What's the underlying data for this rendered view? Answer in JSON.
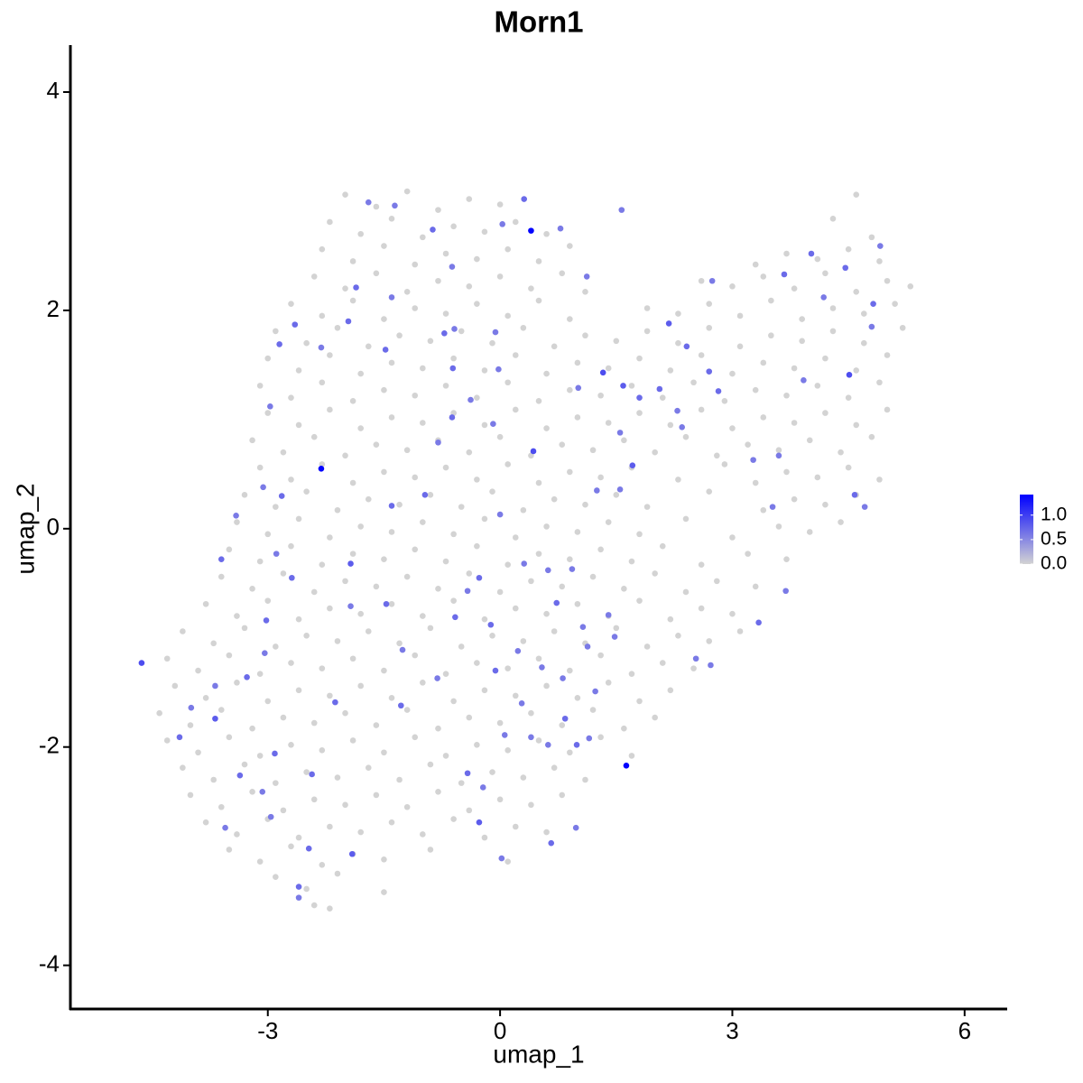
{
  "chart_data": {
    "type": "scatter",
    "title": "Morn1",
    "x_label": "umap_1",
    "y_label": "umap_2",
    "xlim": [
      -5.55,
      6.55
    ],
    "ylim": [
      -4.4,
      4.43
    ],
    "xticks": [
      -3,
      0,
      3,
      6
    ],
    "yticks": [
      -4,
      -2,
      0,
      2,
      4
    ],
    "colorbar": {
      "lim": [
        0,
        1.42
      ],
      "low_color": "#d3d3d3",
      "high_color": "#0000ff",
      "ticks": [
        {
          "value": 0,
          "label": "0.0"
        },
        {
          "value": 0.5,
          "label": "0.5"
        },
        {
          "value": 1,
          "label": "1.0"
        }
      ]
    },
    "x": [
      -2.0,
      -1.6,
      -1.2,
      -0.8,
      -0.4,
      0,
      4.6,
      -2.2,
      -1.8,
      -1.4,
      -1.0,
      -0.6,
      -0.2,
      0.2,
      0.6,
      4.3,
      4.8,
      -2.3,
      -1.9,
      -1.5,
      -1.1,
      -0.7,
      -0.3,
      0.1,
      0.5,
      0.9,
      3.3,
      3.7,
      4.1,
      4.5,
      4.9,
      -2.4,
      -2.0,
      -1.6,
      -1.2,
      -0.8,
      -0.4,
      0,
      0.4,
      0.8,
      1.1,
      2.6,
      3.0,
      3.4,
      3.8,
      4.2,
      4.6,
      5.0,
      5.3,
      -2.7,
      -2.3,
      -1.9,
      -1.5,
      -1.1,
      -0.7,
      -0.3,
      0.1,
      0.5,
      0.9,
      1.9,
      2.3,
      2.7,
      3.1,
      3.5,
      3.9,
      4.3,
      4.7,
      5.1,
      -2.9,
      -2.5,
      -2.1,
      -1.7,
      -1.3,
      -0.9,
      -0.5,
      -0.1,
      0.3,
      0.7,
      1.1,
      1.5,
      1.9,
      2.3,
      2.7,
      3.1,
      3.5,
      3.9,
      4.3,
      4.7,
      5.2,
      -3.0,
      -2.6,
      -2.2,
      -1.8,
      -1.4,
      -1.0,
      -0.6,
      -0.2,
      0.2,
      0.6,
      1.0,
      1.4,
      1.8,
      2.2,
      2.6,
      3.0,
      3.4,
      3.8,
      4.2,
      4.6,
      5.0,
      -3.1,
      -2.7,
      -2.3,
      -1.9,
      -1.5,
      -1.1,
      -0.7,
      -0.3,
      0.1,
      0.5,
      0.9,
      1.3,
      1.7,
      2.1,
      2.5,
      2.9,
      3.3,
      3.7,
      4.1,
      4.5,
      4.9,
      -3.0,
      -2.6,
      -2.2,
      -1.8,
      -1.4,
      -1.0,
      -0.6,
      -0.2,
      0.2,
      0.6,
      1.0,
      1.4,
      1.8,
      2.2,
      2.6,
      3.0,
      3.4,
      3.8,
      4.2,
      4.6,
      5.0,
      -3.2,
      -2.8,
      -2.4,
      -2.0,
      -1.6,
      -1.2,
      -0.8,
      -0.4,
      0,
      0.4,
      0.8,
      1.2,
      1.6,
      2.0,
      2.4,
      2.8,
      3.2,
      3.6,
      4.0,
      4.4,
      4.8,
      -3.1,
      -2.7,
      -2.3,
      -1.9,
      -1.5,
      -1.1,
      -0.7,
      -0.3,
      0.1,
      0.5,
      0.9,
      1.3,
      1.7,
      2.3,
      2.9,
      3.3,
      3.7,
      4.1,
      4.5,
      4.9,
      -3.3,
      -2.9,
      -2.5,
      -2.1,
      -1.7,
      -1.3,
      -0.9,
      -0.5,
      -0.1,
      0.3,
      0.7,
      1.1,
      1.5,
      1.9,
      2.7,
      3.4,
      3.8,
      4.2,
      4.6,
      -3.4,
      -3.0,
      -2.6,
      -2.2,
      -1.8,
      -1.4,
      -1.0,
      -0.6,
      -0.2,
      0.2,
      0.6,
      1.0,
      1.4,
      1.8,
      2.4,
      3.0,
      3.6,
      4.0,
      4.4,
      -3.5,
      -3.1,
      -2.7,
      -2.3,
      -1.9,
      -1.5,
      -1.1,
      -0.7,
      -0.3,
      0.1,
      0.5,
      0.9,
      1.3,
      1.7,
      2.1,
      2.6,
      3.2,
      3.7,
      -3.6,
      -3.2,
      -2.8,
      -2.4,
      -2.0,
      -1.6,
      -1.2,
      -0.8,
      -0.4,
      0,
      0.4,
      0.8,
      1.2,
      1.6,
      2.0,
      2.4,
      2.8,
      3.3,
      -3.8,
      -3.4,
      -3.0,
      -2.6,
      -2.2,
      -1.8,
      -1.4,
      -1.0,
      -0.6,
      -0.2,
      0.2,
      0.6,
      1.0,
      1.4,
      1.8,
      2.2,
      2.6,
      3.0,
      -4.1,
      -3.7,
      -3.3,
      -2.9,
      -2.5,
      -2.1,
      -1.7,
      -1.3,
      -0.9,
      -0.5,
      -0.1,
      0.3,
      0.7,
      1.1,
      1.5,
      1.9,
      2.3,
      2.7,
      3.1,
      -4.3,
      -3.9,
      -3.5,
      -3.1,
      -2.7,
      -2.3,
      -1.9,
      -1.5,
      -1.1,
      -0.7,
      -0.3,
      0.1,
      0.5,
      0.9,
      1.3,
      1.7,
      2.1,
      2.5,
      -4.2,
      -3.8,
      -3.4,
      -3.0,
      -2.6,
      -2.2,
      -1.8,
      -1.4,
      -1.0,
      -0.6,
      -0.2,
      0.2,
      0.6,
      1.0,
      1.4,
      1.8,
      2.2,
      -4.4,
      -4.0,
      -3.6,
      -3.2,
      -2.8,
      -2.4,
      -2.0,
      -1.6,
      -1.2,
      -0.8,
      -0.4,
      0,
      0.4,
      0.8,
      1.2,
      1.6,
      2.0,
      -4.3,
      -3.9,
      -3.5,
      -3.1,
      -2.7,
      -2.3,
      -1.9,
      -1.5,
      -1.1,
      -0.7,
      -0.3,
      0.1,
      0.5,
      0.9,
      1.3,
      1.7,
      -4.1,
      -3.7,
      -3.3,
      -2.9,
      -2.5,
      -2.1,
      -1.7,
      -1.3,
      -0.9,
      -0.5,
      -0.1,
      0.3,
      0.7,
      1.1,
      -4.0,
      -3.6,
      -3.2,
      -2.8,
      -2.4,
      -2.0,
      -1.6,
      -1.2,
      -0.8,
      -0.4,
      0,
      0.4,
      0.8,
      -3.8,
      -3.4,
      -3.0,
      -2.6,
      -2.2,
      -1.8,
      -1.4,
      -1.0,
      -0.6,
      -0.2,
      0.2,
      0.6,
      -3.5,
      -3.1,
      -2.7,
      -2.3,
      -1.9,
      -1.5,
      -0.9,
      0.1,
      -2.9,
      -2.5,
      -2.1,
      -1.5,
      -2.4,
      -2.2,
      0.4,
      -2.31,
      1.63,
      -4.63,
      0.43,
      0.31,
      0.03,
      0.78,
      1.57,
      1.12,
      -0.62,
      -0.87,
      -1.36,
      -1.7,
      -1.86,
      -1.96,
      -1.4,
      -1.48,
      -2.31,
      -2.65,
      -2.85,
      -2.97,
      -3.06,
      -2.82,
      -3.41,
      -3.6,
      -2.89,
      -2.69,
      -3.02,
      -3.04,
      -3.27,
      -3.68,
      -3.99,
      -3.68,
      -4.14,
      -1.93,
      -1.93,
      -1.47,
      -1.4,
      -1.26,
      -1.28,
      -0.81,
      -0.97,
      -0.62,
      -0.8,
      -0.72,
      -0.59,
      -0.61,
      -0.06,
      -0.02,
      -0.09,
      0,
      -0.27,
      -0.42,
      -0.58,
      -0.12,
      0.23,
      -0.06,
      0.28,
      0.54,
      0.81,
      0.84,
      1.15,
      0.99,
      1.23,
      1.48,
      1.13,
      0.62,
      0.93,
      1.07,
      0.73,
      1.4,
      0.98,
      0.66,
      0.02,
      -0.27,
      -0.42,
      -0.22,
      0.06,
      0.62,
      0.4,
      -2.6,
      -2.6,
      -2.47,
      -1.91,
      -2.13,
      -2.43,
      -2.91,
      -3.07,
      -3.36,
      -3.55,
      -2.96,
      1.33,
      1.59,
      1.8,
      2.06,
      2.18,
      2.41,
      2.82,
      2.74,
      2.7,
      2.35,
      3.27,
      3.52,
      3.6,
      3.67,
      4.02,
      3.92,
      4.18,
      4.51,
      4.46,
      4.58,
      4.71,
      4.82,
      4.8,
      4.91,
      1.55,
      1.71,
      1.25,
      1.55,
      3.34,
      3.69,
      2.53,
      2.72,
      1.01,
      -0.38,
      0.31,
      2.29
    ],
    "values": [
      3.06,
      2.95,
      3.09,
      2.92,
      3.02,
      2.97,
      3.06,
      2.81,
      2.7,
      2.84,
      2.67,
      2.77,
      2.72,
      2.81,
      2.7,
      2.84,
      2.67,
      2.56,
      2.45,
      2.59,
      2.42,
      2.52,
      2.47,
      2.56,
      2.45,
      2.59,
      2.42,
      2.52,
      2.47,
      2.56,
      2.45,
      2.31,
      2.2,
      2.34,
      2.17,
      2.27,
      2.22,
      2.31,
      2.2,
      2.34,
      2.17,
      2.27,
      2.22,
      2.31,
      2.2,
      2.34,
      2.17,
      2.27,
      2.22,
      2.06,
      1.95,
      2.09,
      1.92,
      2.02,
      1.97,
      2.06,
      1.95,
      2.09,
      1.92,
      2.02,
      1.97,
      2.06,
      1.95,
      2.09,
      1.92,
      2.02,
      1.97,
      2.06,
      1.81,
      1.7,
      1.84,
      1.67,
      1.77,
      1.72,
      1.81,
      1.7,
      1.84,
      1.67,
      1.77,
      1.72,
      1.81,
      1.7,
      1.84,
      1.67,
      1.77,
      1.72,
      1.81,
      1.7,
      1.84,
      1.56,
      1.45,
      1.59,
      1.42,
      1.52,
      1.47,
      1.56,
      1.45,
      1.59,
      1.42,
      1.52,
      1.47,
      1.56,
      1.45,
      1.59,
      1.42,
      1.52,
      1.47,
      1.56,
      1.45,
      1.59,
      1.31,
      1.2,
      1.34,
      1.17,
      1.27,
      1.22,
      1.31,
      1.2,
      1.34,
      1.17,
      1.27,
      1.22,
      1.31,
      1.2,
      1.34,
      1.17,
      1.27,
      1.22,
      1.31,
      1.2,
      1.34,
      1.06,
      0.95,
      1.09,
      0.92,
      1.02,
      0.97,
      1.06,
      0.95,
      1.09,
      0.92,
      1.02,
      0.97,
      1.06,
      0.95,
      1.09,
      0.92,
      1.02,
      0.97,
      1.06,
      0.95,
      1.09,
      0.81,
      0.7,
      0.84,
      0.67,
      0.77,
      0.72,
      0.81,
      0.7,
      0.84,
      0.67,
      0.77,
      0.72,
      0.81,
      0.7,
      0.84,
      0.67,
      0.77,
      0.72,
      0.81,
      0.7,
      0.84,
      0.56,
      0.45,
      0.59,
      0.42,
      0.52,
      0.47,
      0.56,
      0.45,
      0.59,
      0.42,
      0.52,
      0.47,
      0.56,
      0.45,
      0.59,
      0.42,
      0.52,
      0.47,
      0.56,
      0.45,
      0.31,
      0.2,
      0.34,
      0.17,
      0.27,
      0.22,
      0.31,
      0.2,
      0.34,
      0.17,
      0.27,
      0.22,
      0.31,
      0.2,
      0.34,
      0.17,
      0.27,
      0.22,
      0.31,
      0.06,
      -0.05,
      0.09,
      -0.08,
      0.02,
      -0.03,
      0.06,
      -0.05,
      0.09,
      -0.08,
      0.02,
      -0.03,
      0.06,
      -0.05,
      0.09,
      -0.08,
      0.02,
      -0.03,
      0.06,
      -0.19,
      -0.3,
      -0.16,
      -0.33,
      -0.23,
      -0.28,
      -0.19,
      -0.3,
      -0.16,
      -0.33,
      -0.23,
      -0.28,
      -0.19,
      -0.3,
      -0.16,
      -0.33,
      -0.23,
      -0.28,
      -0.44,
      -0.55,
      -0.41,
      -0.58,
      -0.48,
      -0.53,
      -0.44,
      -0.55,
      -0.41,
      -0.58,
      -0.48,
      -0.53,
      -0.44,
      -0.55,
      -0.41,
      -0.58,
      -0.48,
      -0.53,
      -0.69,
      -0.8,
      -0.66,
      -0.83,
      -0.73,
      -0.78,
      -0.69,
      -0.8,
      -0.66,
      -0.83,
      -0.73,
      -0.78,
      -0.69,
      -0.8,
      -0.66,
      -0.83,
      -0.73,
      -0.78,
      -0.94,
      -1.05,
      -0.91,
      -1.08,
      -0.98,
      -1.03,
      -0.94,
      -1.05,
      -0.91,
      -1.08,
      -0.98,
      -1.03,
      -0.94,
      -1.05,
      -0.91,
      -1.08,
      -0.98,
      -1.03,
      -0.94,
      -1.19,
      -1.3,
      -1.16,
      -1.33,
      -1.23,
      -1.28,
      -1.19,
      -1.3,
      -1.16,
      -1.33,
      -1.23,
      -1.28,
      -1.19,
      -1.3,
      -1.16,
      -1.33,
      -1.23,
      -1.28,
      -1.44,
      -1.55,
      -1.41,
      -1.58,
      -1.48,
      -1.53,
      -1.44,
      -1.55,
      -1.41,
      -1.58,
      -1.48,
      -1.53,
      -1.44,
      -1.55,
      -1.41,
      -1.58,
      -1.48,
      -1.69,
      -1.8,
      -1.66,
      -1.83,
      -1.73,
      -1.78,
      -1.69,
      -1.8,
      -1.66,
      -1.83,
      -1.73,
      -1.78,
      -1.69,
      -1.8,
      -1.66,
      -1.83,
      -1.73,
      -1.94,
      -2.05,
      -1.91,
      -2.08,
      -1.98,
      -2.03,
      -1.94,
      -2.05,
      -1.91,
      -2.08,
      -1.98,
      -2.03,
      -1.94,
      -2.05,
      -1.91,
      -2.08,
      -2.19,
      -2.3,
      -2.16,
      -2.33,
      -2.23,
      -2.28,
      -2.19,
      -2.3,
      -2.16,
      -2.33,
      -2.23,
      -2.28,
      -2.19,
      -2.3,
      -2.44,
      -2.55,
      -2.41,
      -2.58,
      -2.48,
      -2.53,
      -2.44,
      -2.55,
      -2.41,
      -2.58,
      -2.48,
      -2.53,
      -2.44,
      -2.69,
      -2.8,
      -2.66,
      -2.83,
      -2.73,
      -2.78,
      -2.69,
      -2.8,
      -2.66,
      -2.83,
      -2.73,
      -2.78,
      -2.94,
      -3.05,
      -2.91,
      -3.08,
      -2.98,
      -3.03,
      -2.94,
      -3.05,
      -3.19,
      -3.3,
      -3.16,
      -3.33,
      -3.45,
      -3.48,
      2.73,
      0.55,
      -2.17,
      -1.23,
      0.71,
      3.02,
      2.79,
      2.75,
      2.92,
      2.31,
      2.4,
      2.74,
      2.96,
      2.99,
      2.21,
      1.9,
      2.12,
      1.64,
      1.66,
      1.87,
      1.69,
      1.12,
      0.38,
      0.3,
      0.12,
      -0.28,
      -0.23,
      -0.45,
      -0.84,
      -1.14,
      -1.36,
      -1.44,
      -1.64,
      -1.74,
      -1.91,
      -0.32,
      -0.71,
      -0.69,
      0.21,
      -1.11,
      -1.62,
      -1.37,
      0.31,
      1.02,
      0.79,
      1.79,
      1.83,
      1.47,
      1.8,
      1.46,
      0.96,
      0.13,
      -0.45,
      -0.57,
      -0.81,
      -0.88,
      -1.12,
      -1.3,
      -1.6,
      -1.27,
      -1.37,
      -1.74,
      -1.92,
      -1.98,
      -1.49,
      -0.99,
      -1.08,
      -0.38,
      -0.37,
      -0.9,
      -0.68,
      -0.79,
      -2.74,
      -2.88,
      -3.02,
      -2.69,
      -2.24,
      -2.37,
      -1.89,
      -1.98,
      -1.91,
      -3.28,
      -3.38,
      -2.93,
      -2.98,
      -1.59,
      -2.25,
      -2.06,
      -2.41,
      -2.26,
      -2.74,
      -2.64,
      1.43,
      1.31,
      1.2,
      1.28,
      1.88,
      1.67,
      1.26,
      2.27,
      1.44,
      0.93,
      0.63,
      0.2,
      0.67,
      2.33,
      2.52,
      1.36,
      2.12,
      1.41,
      2.39,
      0.31,
      0.2,
      2.06,
      1.85,
      2.59,
      0.36,
      0.58,
      0.35,
      0.88,
      -0.86,
      -0.57,
      -1.19,
      -1.25,
      1.29,
      1.18,
      -0.32,
      1.08
    ],
    "expression": [
      0,
      0,
      0,
      0,
      0,
      0,
      0,
      0,
      0,
      0,
      0,
      0,
      0,
      0,
      0,
      0,
      0,
      0,
      0,
      0,
      0,
      0,
      0,
      0,
      0,
      0,
      0,
      0,
      0,
      0,
      0,
      0,
      0,
      0,
      0,
      0,
      0,
      0,
      0,
      0,
      0,
      0,
      0,
      0,
      0,
      0,
      0,
      0,
      0,
      0,
      0,
      0,
      0,
      0,
      0,
      0,
      0,
      0,
      0,
      0,
      0,
      0,
      0,
      0,
      0,
      0,
      0,
      0,
      0,
      0,
      0,
      0,
      0,
      0,
      0,
      0,
      0,
      0,
      0,
      0,
      0,
      0,
      0,
      0,
      0,
      0,
      0,
      0,
      0,
      0,
      0,
      0,
      0,
      0,
      0,
      0,
      0,
      0,
      0,
      0,
      0,
      0,
      0,
      0,
      0,
      0,
      0,
      0,
      0,
      0,
      0,
      0,
      0,
      0,
      0,
      0,
      0,
      0,
      0,
      0,
      0,
      0,
      0,
      0,
      0,
      0,
      0,
      0,
      0,
      0,
      0,
      0,
      0,
      0,
      0,
      0,
      0,
      0,
      0,
      0,
      0,
      0,
      0,
      0,
      0,
      0,
      0,
      0,
      0,
      0,
      0,
      0,
      0,
      0,
      0,
      0,
      0,
      0,
      0,
      0,
      0,
      0,
      0,
      0,
      0,
      0,
      0,
      0,
      0,
      0,
      0,
      0,
      0,
      0,
      0,
      0,
      0,
      0,
      0,
      0,
      0,
      0,
      0,
      0,
      0,
      0,
      0,
      0,
      0,
      0,
      0,
      0,
      0,
      0,
      0,
      0,
      0,
      0,
      0,
      0,
      0,
      0,
      0,
      0,
      0,
      0,
      0,
      0,
      0,
      0,
      0,
      0,
      0,
      0,
      0,
      0,
      0,
      0,
      0,
      0,
      0,
      0,
      0,
      0,
      0,
      0,
      0,
      0,
      0,
      0,
      0,
      0,
      0,
      0,
      0,
      0,
      0,
      0,
      0,
      0,
      0,
      0,
      0,
      0,
      0,
      0,
      0,
      0,
      0,
      0,
      0,
      0,
      0,
      0,
      0,
      0,
      0,
      0,
      0,
      0,
      0,
      0,
      0,
      0,
      0,
      0,
      0,
      0,
      0,
      0,
      0,
      0,
      0,
      0,
      0,
      0,
      0,
      0,
      0,
      0,
      0,
      0,
      0,
      0,
      0,
      0,
      0,
      0,
      0,
      0,
      0,
      0,
      0,
      0,
      0,
      0,
      0,
      0,
      0,
      0,
      0,
      0,
      0,
      0,
      0,
      0,
      0,
      0,
      0,
      0,
      0,
      0,
      0,
      0,
      0,
      0,
      0,
      0,
      0,
      0,
      0,
      0,
      0,
      0,
      0,
      0,
      0,
      0,
      0,
      0,
      0,
      0,
      0,
      0,
      0,
      0,
      0,
      0,
      0,
      0,
      0,
      0,
      0,
      0,
      0,
      0,
      0,
      0,
      0,
      0,
      0,
      0,
      0,
      0,
      0,
      0,
      0,
      0,
      0,
      0,
      0,
      0,
      0,
      0,
      0,
      0,
      0,
      0,
      0,
      0,
      0,
      0,
      0,
      0,
      0,
      0,
      0,
      0,
      0,
      0,
      0,
      0,
      0,
      0,
      0,
      0,
      0,
      0,
      0,
      0,
      0,
      0,
      0,
      0,
      0,
      0,
      0,
      0,
      0,
      0,
      0,
      0,
      0,
      0,
      0,
      0,
      0,
      0,
      0,
      0,
      0,
      0,
      0,
      0,
      0,
      0,
      0,
      0,
      0,
      0,
      0,
      0,
      0,
      0,
      0,
      1.4,
      1.4,
      1.4,
      0.9,
      0.9,
      0.7,
      0.6,
      0.6,
      0.6,
      0.6,
      0.6,
      0.7,
      0.6,
      0.6,
      0.7,
      0.7,
      0.6,
      0.7,
      0.6,
      0.7,
      0.7,
      0.6,
      0.6,
      0.7,
      0.6,
      0.7,
      0.6,
      0.7,
      0.7,
      0.6,
      0.7,
      0.6,
      0.6,
      0.8,
      0.7,
      0.8,
      0.6,
      0.7,
      0.7,
      0.6,
      0.7,
      0.6,
      0.7,
      0.7,
      0.6,
      0.7,
      0.6,
      0.7,
      0.6,
      0.6,
      0.6,
      0.6,
      0.7,
      0.6,
      0.7,
      0.7,
      0.6,
      0.7,
      0.6,
      0.6,
      0.6,
      0.7,
      0.6,
      0.7,
      0.6,
      0.6,
      0.6,
      0.6,
      0.6,
      0.6,
      0.7,
      0.6,
      0.6,
      0.7,
      0.6,
      0.8,
      0.7,
      0.6,
      0.6,
      0.6,
      0.6,
      0.7,
      0.6,
      0.7,
      0.8,
      0.7,
      0.7,
      0.7,
      0.6,
      0.7,
      0.6,
      0.6,
      0.9,
      0.8,
      0.7,
      0.7,
      0.8,
      0.7,
      0.7,
      0.6,
      0.7,
      0.6,
      0.6,
      0.6,
      0.6,
      0.7,
      0.7,
      0.6,
      0.6,
      0.9,
      0.7,
      0.7,
      0.6,
      0.7,
      0.6,
      0.6,
      0.6,
      0.8,
      0.6,
      0.6,
      0.7,
      0.6,
      0.6,
      0.6,
      0.6,
      0.6,
      0.6,
      0.6
    ]
  }
}
